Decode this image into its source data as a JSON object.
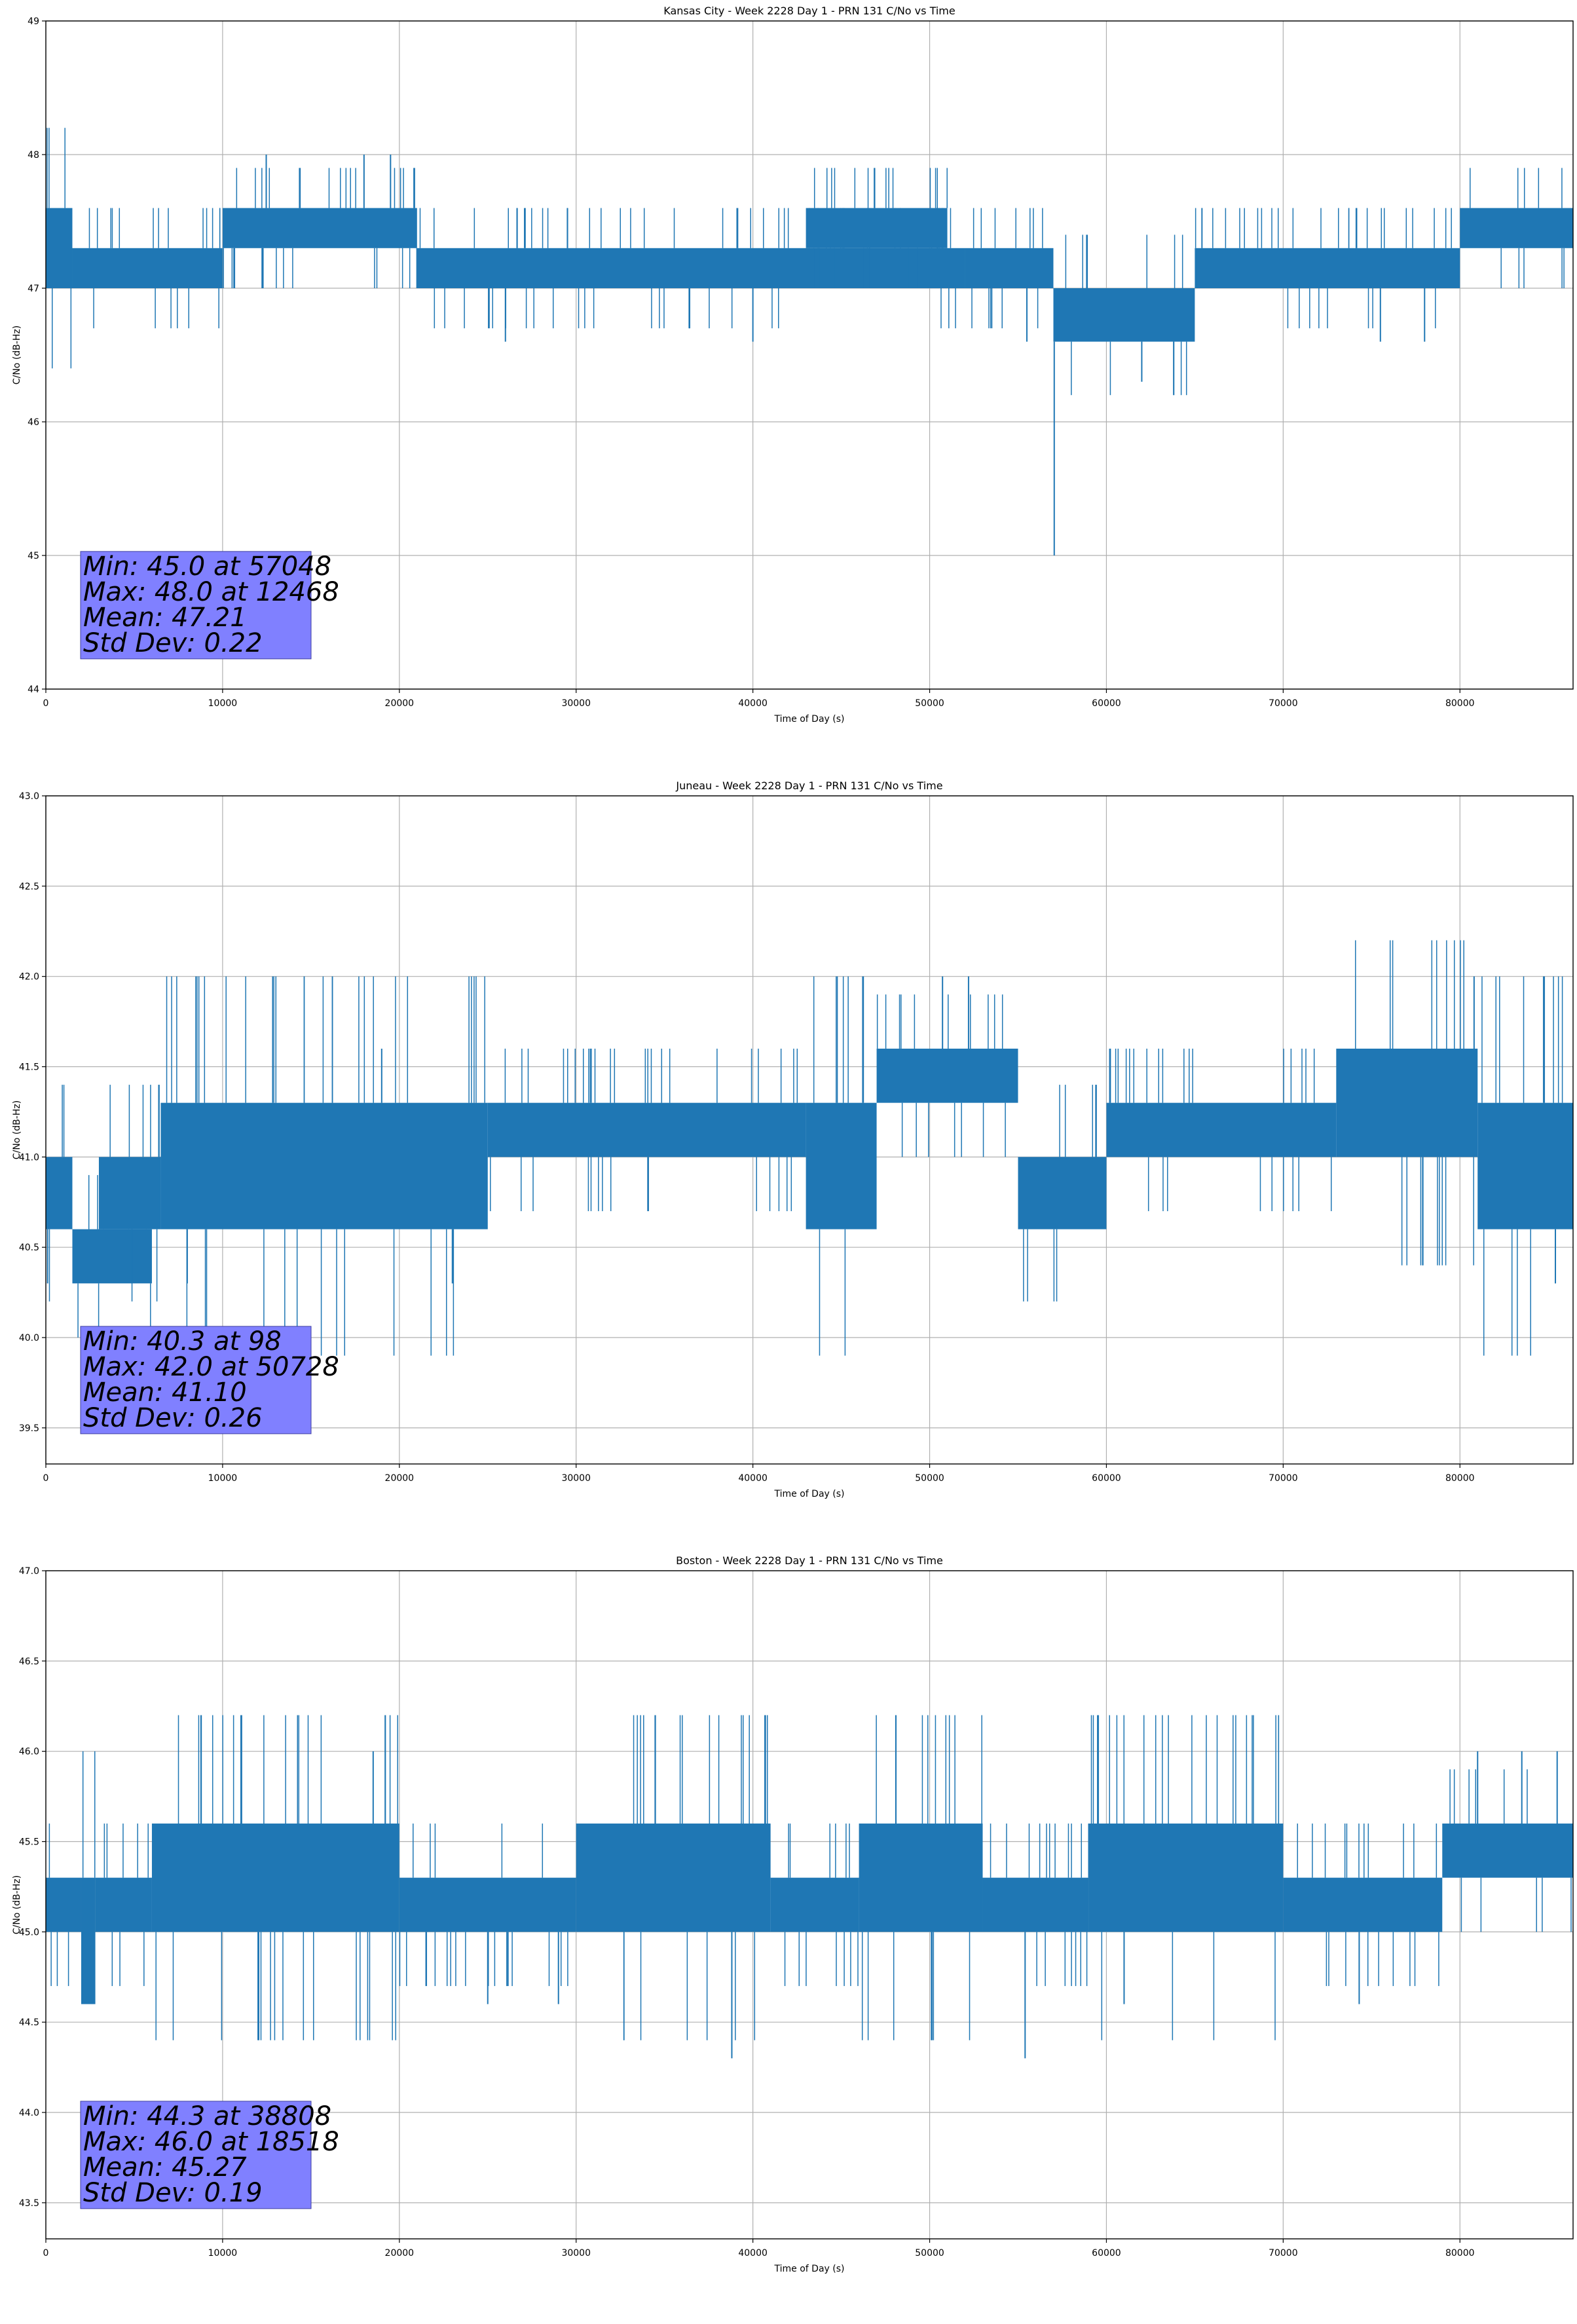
{
  "chart_data": [
    {
      "type": "line",
      "title": "Kansas City - Week 2228 Day 1 - PRN 131 C/No vs Time",
      "xlabel": "Time of Day (s)",
      "ylabel": "C/No (dB-Hz)",
      "xlim": [
        0,
        86400
      ],
      "ylim": [
        44,
        49
      ],
      "xticks": [
        0,
        10000,
        20000,
        30000,
        40000,
        50000,
        60000,
        70000,
        80000
      ],
      "yticks": [
        "44",
        "45",
        "46",
        "47",
        "48",
        "49"
      ],
      "grid": true,
      "series_color": "#1f77b4",
      "series": [
        {
          "segments": [
            {
              "x0": 0,
              "x1": 1500,
              "low": 47.0,
              "high": 47.6
            },
            {
              "x0": 1500,
              "x1": 10000,
              "low": 47.0,
              "high": 47.3
            },
            {
              "x0": 10000,
              "x1": 21000,
              "low": 47.3,
              "high": 47.6
            },
            {
              "x0": 21000,
              "x1": 52000,
              "low": 47.0,
              "high": 47.3
            },
            {
              "x0": 43000,
              "x1": 51000,
              "low": 47.3,
              "high": 47.6
            },
            {
              "x0": 52000,
              "x1": 57000,
              "low": 47.0,
              "high": 47.3
            },
            {
              "x0": 57000,
              "x1": 65000,
              "low": 46.6,
              "high": 47.0
            },
            {
              "x0": 65000,
              "x1": 80000,
              "low": 47.0,
              "high": 47.3
            },
            {
              "x0": 80000,
              "x1": 86400,
              "low": 47.3,
              "high": 47.6
            }
          ],
          "spikes": [
            {
              "x": 12468,
              "y": 48.0
            },
            {
              "x": 18000,
              "y": 48.0
            },
            {
              "x": 19500,
              "y": 48.0
            },
            {
              "x": 26000,
              "y": 46.6
            },
            {
              "x": 40000,
              "y": 46.6
            },
            {
              "x": 55500,
              "y": 46.6
            },
            {
              "x": 57048,
              "y": 45.0
            },
            {
              "x": 62000,
              "y": 46.3
            },
            {
              "x": 75500,
              "y": 46.6
            },
            {
              "x": 78000,
              "y": 46.6
            }
          ]
        }
      ],
      "stats": [
        "Min: 45.0 at 57048",
        "Max: 48.0 at 12468",
        "Mean: 47.21",
        "Std Dev: 0.22"
      ]
    },
    {
      "type": "line",
      "title": "Juneau - Week 2228 Day 1 - PRN 131 C/No vs Time",
      "xlabel": "Time of Day (s)",
      "ylabel": "C/No (dB-Hz)",
      "xlim": [
        0,
        86400
      ],
      "ylim": [
        39.3,
        43.0
      ],
      "xticks": [
        0,
        10000,
        20000,
        30000,
        40000,
        50000,
        60000,
        70000,
        80000
      ],
      "yticks": [
        "39.5",
        "40.0",
        "40.5",
        "41.0",
        "41.5",
        "42.0",
        "42.5",
        "43.0"
      ],
      "grid": true,
      "series_color": "#1f77b4",
      "series": [
        {
          "segments": [
            {
              "x0": 0,
              "x1": 1500,
              "low": 40.6,
              "high": 41.0
            },
            {
              "x0": 1500,
              "x1": 6000,
              "low": 40.3,
              "high": 40.6
            },
            {
              "x0": 3000,
              "x1": 6500,
              "low": 40.6,
              "high": 41.0
            },
            {
              "x0": 6500,
              "x1": 25000,
              "low": 40.6,
              "high": 41.3
            },
            {
              "x0": 25000,
              "x1": 43000,
              "low": 41.0,
              "high": 41.3
            },
            {
              "x0": 43000,
              "x1": 47000,
              "low": 40.6,
              "high": 41.3
            },
            {
              "x0": 47000,
              "x1": 55000,
              "low": 41.3,
              "high": 41.6
            },
            {
              "x0": 55000,
              "x1": 60000,
              "low": 40.6,
              "high": 41.0
            },
            {
              "x0": 60000,
              "x1": 73000,
              "low": 41.0,
              "high": 41.3
            },
            {
              "x0": 73000,
              "x1": 81000,
              "low": 41.0,
              "high": 41.6
            },
            {
              "x0": 81000,
              "x1": 86400,
              "low": 40.6,
              "high": 41.3
            }
          ],
          "spikes": [
            {
              "x": 98,
              "y": 40.3
            },
            {
              "x": 8000,
              "y": 40.3
            },
            {
              "x": 19000,
              "y": 41.6
            },
            {
              "x": 23000,
              "y": 40.3
            },
            {
              "x": 50728,
              "y": 42.0
            },
            {
              "x": 52200,
              "y": 42.0
            },
            {
              "x": 80800,
              "y": 42.0
            },
            {
              "x": 85400,
              "y": 40.3
            }
          ]
        }
      ],
      "stats": [
        "Min: 40.3 at 98",
        "Max: 42.0 at 50728",
        "Mean: 41.10",
        "Std Dev: 0.26"
      ]
    },
    {
      "type": "line",
      "title": "Boston - Week 2228 Day 1 - PRN 131 C/No vs Time",
      "xlabel": "Time of Day (s)",
      "ylabel": "C/No (dB-Hz)",
      "xlim": [
        0,
        86400
      ],
      "ylim": [
        43.3,
        47.0
      ],
      "xticks": [
        0,
        10000,
        20000,
        30000,
        40000,
        50000,
        60000,
        70000,
        80000
      ],
      "yticks": [
        "43.5",
        "44.0",
        "44.5",
        "45.0",
        "45.5",
        "46.0",
        "46.5",
        "47.0"
      ],
      "grid": true,
      "series_color": "#1f77b4",
      "series": [
        {
          "segments": [
            {
              "x0": 0,
              "x1": 2000,
              "low": 45.0,
              "high": 45.3
            },
            {
              "x0": 2000,
              "x1": 2800,
              "low": 44.6,
              "high": 45.3
            },
            {
              "x0": 2800,
              "x1": 6000,
              "low": 45.0,
              "high": 45.3
            },
            {
              "x0": 6000,
              "x1": 20000,
              "low": 45.0,
              "high": 45.6
            },
            {
              "x0": 20000,
              "x1": 30000,
              "low": 45.0,
              "high": 45.3
            },
            {
              "x0": 30000,
              "x1": 41000,
              "low": 45.0,
              "high": 45.6
            },
            {
              "x0": 41000,
              "x1": 46000,
              "low": 45.0,
              "high": 45.3
            },
            {
              "x0": 46000,
              "x1": 53000,
              "low": 45.0,
              "high": 45.6
            },
            {
              "x0": 53000,
              "x1": 59000,
              "low": 45.0,
              "high": 45.3
            },
            {
              "x0": 59000,
              "x1": 70000,
              "low": 45.0,
              "high": 45.6
            },
            {
              "x0": 70000,
              "x1": 79000,
              "low": 45.0,
              "high": 45.3
            },
            {
              "x0": 79000,
              "x1": 86400,
              "low": 45.3,
              "high": 45.6
            }
          ],
          "spikes": [
            {
              "x": 18518,
              "y": 46.0
            },
            {
              "x": 25000,
              "y": 44.6
            },
            {
              "x": 29000,
              "y": 44.6
            },
            {
              "x": 38808,
              "y": 44.3
            },
            {
              "x": 55400,
              "y": 44.3
            },
            {
              "x": 61000,
              "y": 44.6
            },
            {
              "x": 74300,
              "y": 44.6
            },
            {
              "x": 81000,
              "y": 46.0
            },
            {
              "x": 83500,
              "y": 46.0
            },
            {
              "x": 85500,
              "y": 46.0
            }
          ]
        }
      ],
      "stats": [
        "Min: 44.3 at 38808",
        "Max: 46.0 at 18518",
        "Mean: 45.27",
        "Std Dev: 0.19"
      ]
    }
  ]
}
